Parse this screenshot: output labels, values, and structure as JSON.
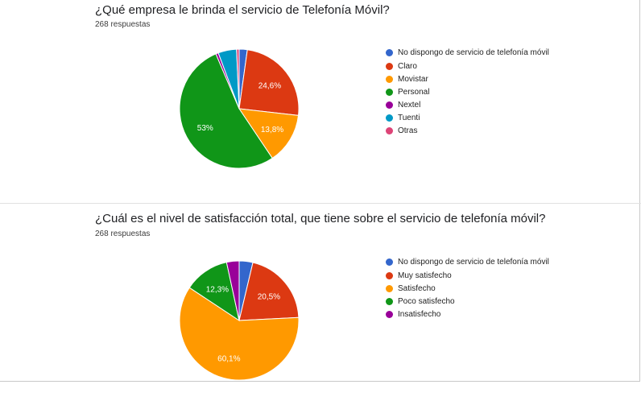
{
  "charts": [
    {
      "title": "¿Qué empresa le brinda el servicio de Telefonía Móvil?",
      "responses": "268 respuestas",
      "chart_data": {
        "type": "pie",
        "title": "¿Qué empresa le brinda el servicio de Telefonía Móvil?",
        "labels": [
          "No dispongo de servicio de telefonía móvil",
          "Claro",
          "Movistar",
          "Personal",
          "Nextel",
          "Tuenti",
          "Otras"
        ],
        "values": [
          2.2,
          24.6,
          13.8,
          53,
          0.7,
          5.0,
          0.7
        ],
        "colors": [
          "#3366cc",
          "#dc3912",
          "#ff9900",
          "#109618",
          "#990099",
          "#0099c6",
          "#dd4477"
        ],
        "data_labels": [
          "",
          "24,6%",
          "13,8%",
          "53%",
          "",
          "",
          ""
        ],
        "legend_position": "right"
      }
    },
    {
      "title": "¿Cuál es el nivel de satisfacción total, que tiene sobre el servicio de telefonía móvil?",
      "responses": "268 respuestas",
      "chart_data": {
        "type": "pie",
        "title": "¿Cuál es el nivel de satisfacción total, que tiene sobre el servicio de telefonía móvil?",
        "labels": [
          "No dispongo de servicio de telefonía móvil",
          "Muy satisfecho",
          "Satisfecho",
          "Poco satisfecho",
          "Insatisfecho"
        ],
        "values": [
          3.7,
          20.5,
          60.1,
          12.3,
          3.4
        ],
        "colors": [
          "#3366cc",
          "#dc3912",
          "#ff9900",
          "#109618",
          "#990099"
        ],
        "data_labels": [
          "",
          "20,5%",
          "60,1%",
          "12,3%",
          ""
        ],
        "legend_position": "right"
      }
    }
  ]
}
